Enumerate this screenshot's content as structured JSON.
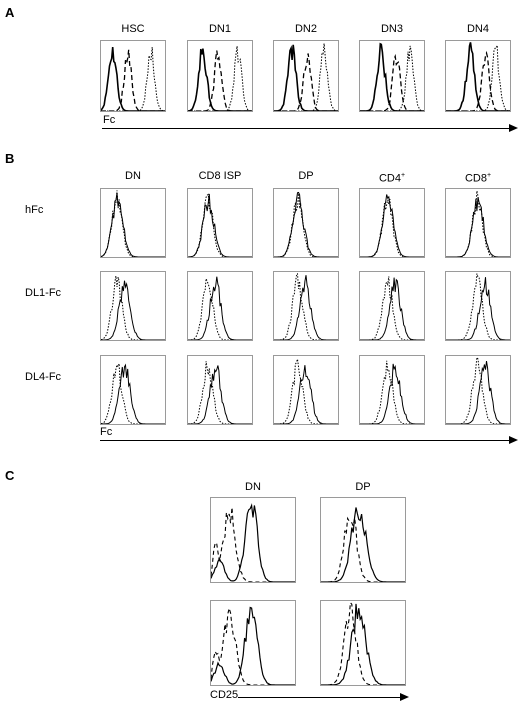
{
  "panelA": {
    "letter": "A",
    "columns": [
      "HSC",
      "DN1",
      "DN2",
      "DN3",
      "DN4"
    ],
    "axis_label": "Fc"
  },
  "panelB": {
    "letter": "B",
    "columns": [
      "DN",
      "CD8 ISP",
      "DP",
      "CD4",
      "CD8"
    ],
    "column_sups": [
      "",
      "",
      "",
      "+",
      "+"
    ],
    "rows": [
      "hFc",
      "DL1-Fc",
      "DL4-Fc"
    ],
    "axis_label": "Fc"
  },
  "panelC": {
    "letter": "C",
    "columns": [
      "DN",
      "DP"
    ],
    "axis_label": "CD25"
  }
}
